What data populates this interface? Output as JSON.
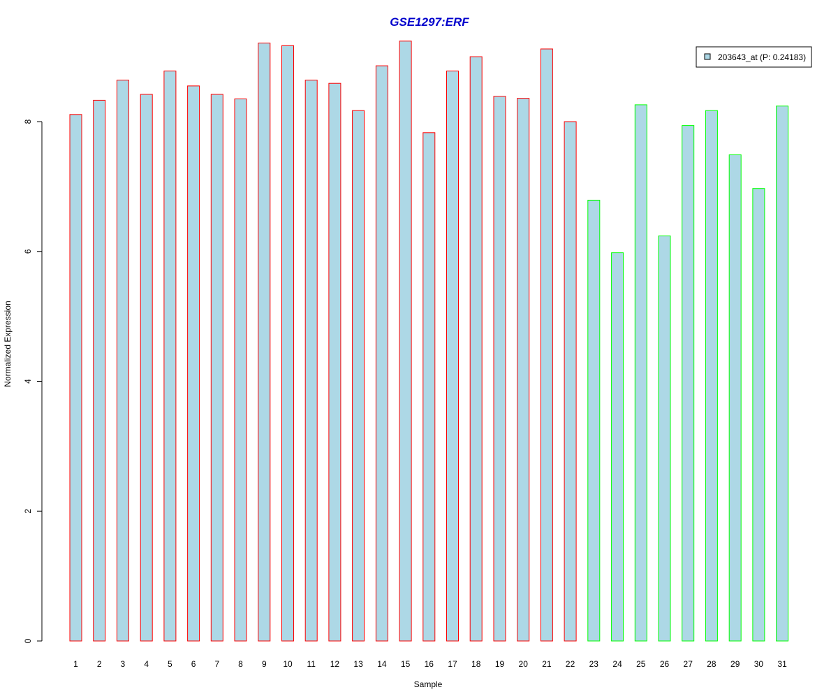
{
  "chart_data": {
    "type": "bar",
    "title": "GSE1297:ERF",
    "title_color": "#0000CC",
    "xlabel": "Sample",
    "ylabel": "Normalized Expression",
    "ylim": [
      0,
      9.3
    ],
    "yticks": [
      0,
      2,
      4,
      6,
      8
    ],
    "grid": false,
    "legend": {
      "position": "top-right",
      "entries": [
        {
          "label": "203643_at (P: 0.24183)",
          "fill": "#ADD8E6"
        }
      ]
    },
    "bar_fill": "#ADD8E6",
    "group_colors": {
      "group1": "#FF0000",
      "group2": "#00FF00"
    },
    "categories": [
      "1",
      "2",
      "3",
      "4",
      "5",
      "6",
      "7",
      "8",
      "9",
      "10",
      "11",
      "12",
      "13",
      "14",
      "15",
      "16",
      "17",
      "18",
      "19",
      "20",
      "21",
      "22",
      "23",
      "24",
      "25",
      "26",
      "27",
      "28",
      "29",
      "30",
      "31"
    ],
    "values": [
      8.11,
      8.33,
      8.64,
      8.42,
      8.78,
      8.55,
      8.42,
      8.35,
      9.21,
      9.17,
      8.64,
      8.59,
      8.17,
      8.86,
      9.24,
      7.83,
      8.78,
      9.0,
      8.39,
      8.36,
      9.12,
      8.0,
      6.79,
      5.98,
      8.26,
      6.24,
      7.94,
      8.17,
      7.49,
      6.97,
      8.24
    ],
    "groups": [
      "group1",
      "group1",
      "group1",
      "group1",
      "group1",
      "group1",
      "group1",
      "group1",
      "group1",
      "group1",
      "group1",
      "group1",
      "group1",
      "group1",
      "group1",
      "group1",
      "group1",
      "group1",
      "group1",
      "group1",
      "group1",
      "group1",
      "group2",
      "group2",
      "group2",
      "group2",
      "group2",
      "group2",
      "group2",
      "group2",
      "group2"
    ]
  }
}
